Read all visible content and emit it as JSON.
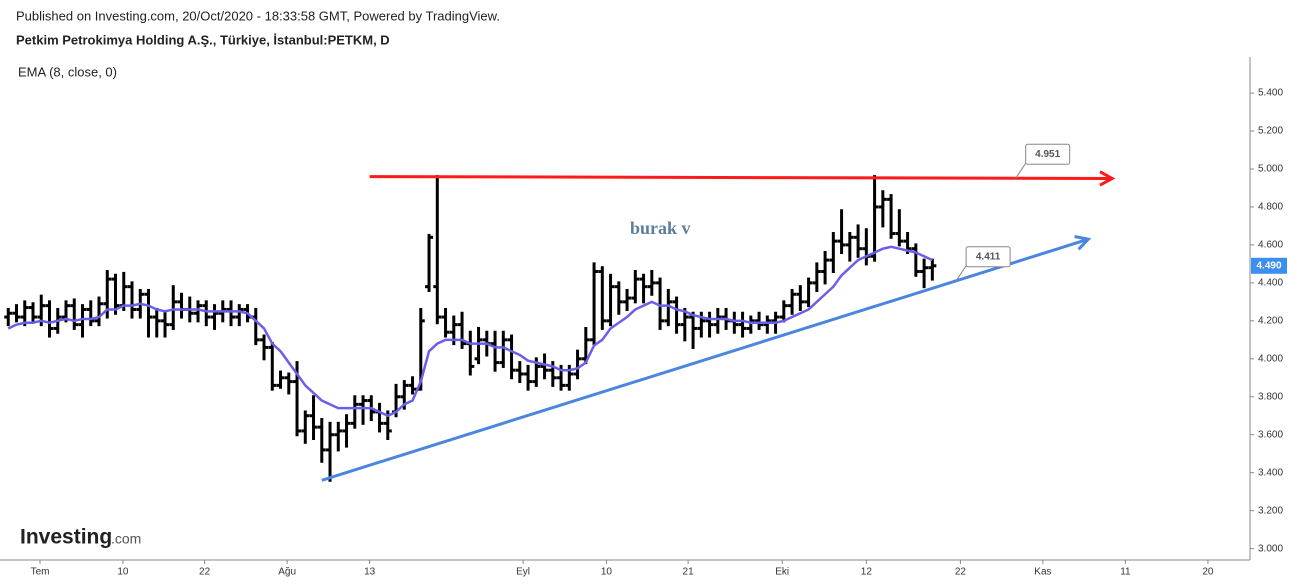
{
  "header": {
    "published": "Published on Investing.com, 20/Oct/2020 - 18:33:58 GMT, Powered by TradingView.",
    "symbol": "Petkim Petrokimya Holding A.Ş., Türkiye, İstanbul:PETKM, D"
  },
  "logo": {
    "brand": "Investing",
    "suffix": ".com"
  },
  "chart_data": {
    "type": "ohlc",
    "color": "#000000",
    "annotation": "burak v",
    "last_price": {
      "value": 4.49,
      "label": "4.490"
    },
    "xlim": [
      -1,
      150.5
    ],
    "ylim": [
      2.94,
      5.59
    ],
    "xticks": [
      {
        "value": 3.85,
        "label": "Tem"
      },
      {
        "value": 13.9,
        "label": "10"
      },
      {
        "value": 23.8,
        "label": "22"
      },
      {
        "value": 33.8,
        "label": "Ağu"
      },
      {
        "value": 43.8,
        "label": "13"
      },
      {
        "value": 62.4,
        "label": "Eyl"
      },
      {
        "value": 72.5,
        "label": "10"
      },
      {
        "value": 82.4,
        "label": "21"
      },
      {
        "value": 93.8,
        "label": "Eki"
      },
      {
        "value": 104,
        "label": "12"
      },
      {
        "value": 115.4,
        "label": "22"
      },
      {
        "value": 125.4,
        "label": "Kas"
      },
      {
        "value": 135.4,
        "label": "11"
      },
      {
        "value": 145.4,
        "label": "20"
      }
    ],
    "yticks": [
      {
        "value": 3.0,
        "label": "3.000"
      },
      {
        "value": 3.2,
        "label": "3.200"
      },
      {
        "value": 3.4,
        "label": "3.400"
      },
      {
        "value": 3.6,
        "label": "3.600"
      },
      {
        "value": 3.8,
        "label": "3.800"
      },
      {
        "value": 4.0,
        "label": "4.000"
      },
      {
        "value": 4.2,
        "label": "4.200"
      },
      {
        "value": 4.4,
        "label": "4.400"
      },
      {
        "value": 4.6,
        "label": "4.600"
      },
      {
        "value": 4.8,
        "label": "4.800"
      },
      {
        "value": 5.0,
        "label": "5.000"
      },
      {
        "value": 5.2,
        "label": "5.200"
      },
      {
        "value": 5.4,
        "label": "5.400"
      }
    ],
    "open": [
      4.22,
      4.24,
      4.22,
      4.27,
      4.22,
      4.28,
      4.16,
      4.22,
      4.28,
      4.18,
      4.26,
      4.2,
      4.29,
      4.42,
      4.28,
      4.38,
      4.26,
      4.34,
      4.22,
      4.2,
      4.18,
      4.3,
      4.26,
      4.24,
      4.28,
      4.22,
      4.24,
      4.26,
      4.22,
      4.26,
      4.22,
      4.1,
      4.06,
      3.86,
      3.9,
      3.88,
      3.62,
      3.7,
      3.64,
      3.52,
      3.6,
      3.62,
      3.66,
      3.76,
      3.78,
      3.72,
      3.66,
      3.72,
      3.8,
      3.86,
      3.84,
      4.38,
      4.38,
      4.22,
      4.14,
      4.18,
      4.08,
      4.0,
      4.1,
      4.08,
      3.98,
      4.1,
      3.94,
      3.92,
      3.88,
      3.96,
      3.94,
      3.9,
      3.86,
      3.92,
      4.0,
      4.1,
      4.46,
      4.2,
      4.38,
      4.3,
      4.32,
      4.42,
      4.38,
      4.4,
      4.2,
      4.3,
      4.18,
      4.22,
      4.16,
      4.2,
      4.18,
      4.22,
      4.2,
      4.18,
      4.16,
      4.2,
      4.18,
      4.2,
      4.22,
      4.28,
      4.34,
      4.3,
      4.4,
      4.46,
      4.52,
      4.62,
      4.6,
      4.64,
      4.58,
      4.54,
      4.8,
      4.84,
      4.66,
      4.62,
      4.58,
      4.46,
      4.48
    ],
    "high": [
      4.26,
      4.28,
      4.3,
      4.29,
      4.33,
      4.3,
      4.26,
      4.3,
      4.31,
      4.28,
      4.3,
      4.32,
      4.46,
      4.44,
      4.45,
      4.4,
      4.36,
      4.36,
      4.26,
      4.24,
      4.38,
      4.34,
      4.32,
      4.3,
      4.3,
      4.28,
      4.3,
      4.3,
      4.28,
      4.28,
      4.26,
      4.12,
      4.08,
      3.93,
      3.92,
      3.98,
      3.72,
      3.8,
      3.68,
      3.66,
      3.66,
      3.7,
      3.8,
      3.8,
      3.8,
      3.76,
      3.72,
      3.86,
      3.88,
      3.9,
      4.26,
      4.65,
      4.96,
      4.26,
      4.22,
      4.24,
      4.14,
      4.16,
      4.14,
      4.14,
      4.14,
      4.12,
      3.98,
      3.96,
      4.0,
      4.02,
      3.98,
      3.96,
      3.96,
      4.04,
      4.16,
      4.5,
      4.48,
      4.44,
      4.4,
      4.36,
      4.46,
      4.44,
      4.46,
      4.42,
      4.36,
      4.32,
      4.26,
      4.24,
      4.24,
      4.24,
      4.26,
      4.26,
      4.24,
      4.24,
      4.22,
      4.24,
      4.22,
      4.24,
      4.3,
      4.36,
      4.38,
      4.42,
      4.5,
      4.56,
      4.66,
      4.78,
      4.66,
      4.7,
      4.68,
      4.96,
      4.88,
      4.86,
      4.78,
      4.66,
      4.6,
      4.52,
      4.52
    ],
    "low": [
      4.18,
      4.2,
      4.18,
      4.2,
      4.18,
      4.12,
      4.14,
      4.2,
      4.16,
      4.12,
      4.18,
      4.18,
      4.22,
      4.24,
      4.26,
      4.22,
      4.22,
      4.12,
      4.12,
      4.12,
      4.16,
      4.22,
      4.2,
      4.2,
      4.18,
      4.16,
      4.2,
      4.18,
      4.18,
      4.2,
      4.08,
      4.0,
      3.84,
      3.85,
      3.82,
      3.6,
      3.56,
      3.58,
      3.46,
      3.36,
      3.52,
      3.54,
      3.64,
      3.66,
      3.68,
      3.62,
      3.58,
      3.7,
      3.74,
      3.82,
      3.84,
      4.36,
      4.19,
      4.12,
      4.08,
      4.06,
      3.92,
      3.98,
      4.02,
      3.94,
      3.96,
      3.9,
      3.88,
      3.84,
      3.86,
      3.9,
      3.86,
      3.84,
      3.84,
      3.9,
      3.98,
      4.08,
      4.16,
      4.18,
      4.24,
      4.26,
      4.3,
      4.3,
      4.34,
      4.16,
      4.18,
      4.14,
      4.1,
      4.06,
      4.12,
      4.12,
      4.14,
      4.16,
      4.14,
      4.12,
      4.14,
      4.16,
      4.14,
      4.14,
      4.2,
      4.24,
      4.26,
      4.28,
      4.36,
      4.4,
      4.46,
      4.56,
      4.52,
      4.54,
      4.5,
      4.52,
      4.7,
      4.64,
      4.6,
      4.56,
      4.44,
      4.38,
      4.42
    ],
    "close": [
      4.24,
      4.22,
      4.27,
      4.22,
      4.28,
      4.16,
      4.22,
      4.28,
      4.18,
      4.26,
      4.2,
      4.29,
      4.42,
      4.28,
      4.38,
      4.26,
      4.34,
      4.22,
      4.2,
      4.18,
      4.3,
      4.26,
      4.24,
      4.28,
      4.22,
      4.24,
      4.26,
      4.22,
      4.26,
      4.22,
      4.1,
      4.06,
      3.86,
      3.9,
      3.88,
      3.62,
      3.7,
      3.64,
      3.52,
      3.6,
      3.62,
      3.66,
      3.76,
      3.78,
      3.72,
      3.66,
      3.62,
      3.8,
      3.86,
      3.84,
      4.2,
      4.64,
      4.22,
      4.14,
      4.18,
      4.08,
      3.96,
      4.1,
      4.08,
      3.98,
      4.1,
      3.94,
      3.92,
      3.88,
      3.96,
      3.94,
      3.9,
      3.86,
      3.92,
      4.0,
      4.1,
      4.46,
      4.2,
      4.38,
      4.3,
      4.32,
      4.42,
      4.38,
      4.4,
      4.2,
      4.3,
      4.18,
      4.22,
      4.16,
      4.2,
      4.18,
      4.22,
      4.2,
      4.18,
      4.16,
      4.2,
      4.18,
      4.2,
      4.22,
      4.28,
      4.34,
      4.3,
      4.4,
      4.46,
      4.52,
      4.62,
      4.6,
      4.64,
      4.58,
      4.54,
      4.8,
      4.84,
      4.66,
      4.62,
      4.58,
      4.46,
      4.48,
      4.49
    ],
    "ema": {
      "name": "EMA (8, close, 0)",
      "color": "#6a5fe8",
      "values": [
        4.16,
        4.18,
        4.19,
        4.19,
        4.2,
        4.19,
        4.2,
        4.21,
        4.2,
        4.21,
        4.21,
        4.22,
        4.26,
        4.26,
        4.28,
        4.28,
        4.29,
        4.28,
        4.26,
        4.25,
        4.26,
        4.26,
        4.26,
        4.26,
        4.25,
        4.25,
        4.25,
        4.25,
        4.25,
        4.24,
        4.2,
        4.16,
        4.08,
        4.04,
        3.98,
        3.92,
        3.86,
        3.82,
        3.78,
        3.76,
        3.74,
        3.74,
        3.74,
        3.74,
        3.74,
        3.72,
        3.7,
        3.72,
        3.76,
        3.78,
        3.88,
        4.04,
        4.08,
        4.1,
        4.1,
        4.1,
        4.08,
        4.08,
        4.08,
        4.06,
        4.06,
        4.04,
        4.02,
        3.99,
        3.98,
        3.97,
        3.96,
        3.94,
        3.94,
        3.95,
        3.98,
        4.07,
        4.1,
        4.16,
        4.19,
        4.22,
        4.26,
        4.28,
        4.3,
        4.28,
        4.28,
        4.26,
        4.25,
        4.23,
        4.22,
        4.21,
        4.21,
        4.21,
        4.2,
        4.2,
        4.19,
        4.19,
        4.19,
        4.19,
        4.2,
        4.22,
        4.24,
        4.26,
        4.3,
        4.34,
        4.38,
        4.44,
        4.48,
        4.52,
        4.54,
        4.56,
        4.58,
        4.59,
        4.58,
        4.57,
        4.56,
        4.54,
        4.52
      ]
    },
    "trendlines": [
      {
        "color": "#ff1a1a",
        "start": [
          43.8,
          4.96
        ],
        "end": [
          133.8,
          4.95
        ],
        "label": 4.951
      },
      {
        "color": "#4a86e0",
        "start": [
          38,
          3.36
        ],
        "end": [
          130.9,
          4.63
        ],
        "label": 4.411
      }
    ]
  }
}
